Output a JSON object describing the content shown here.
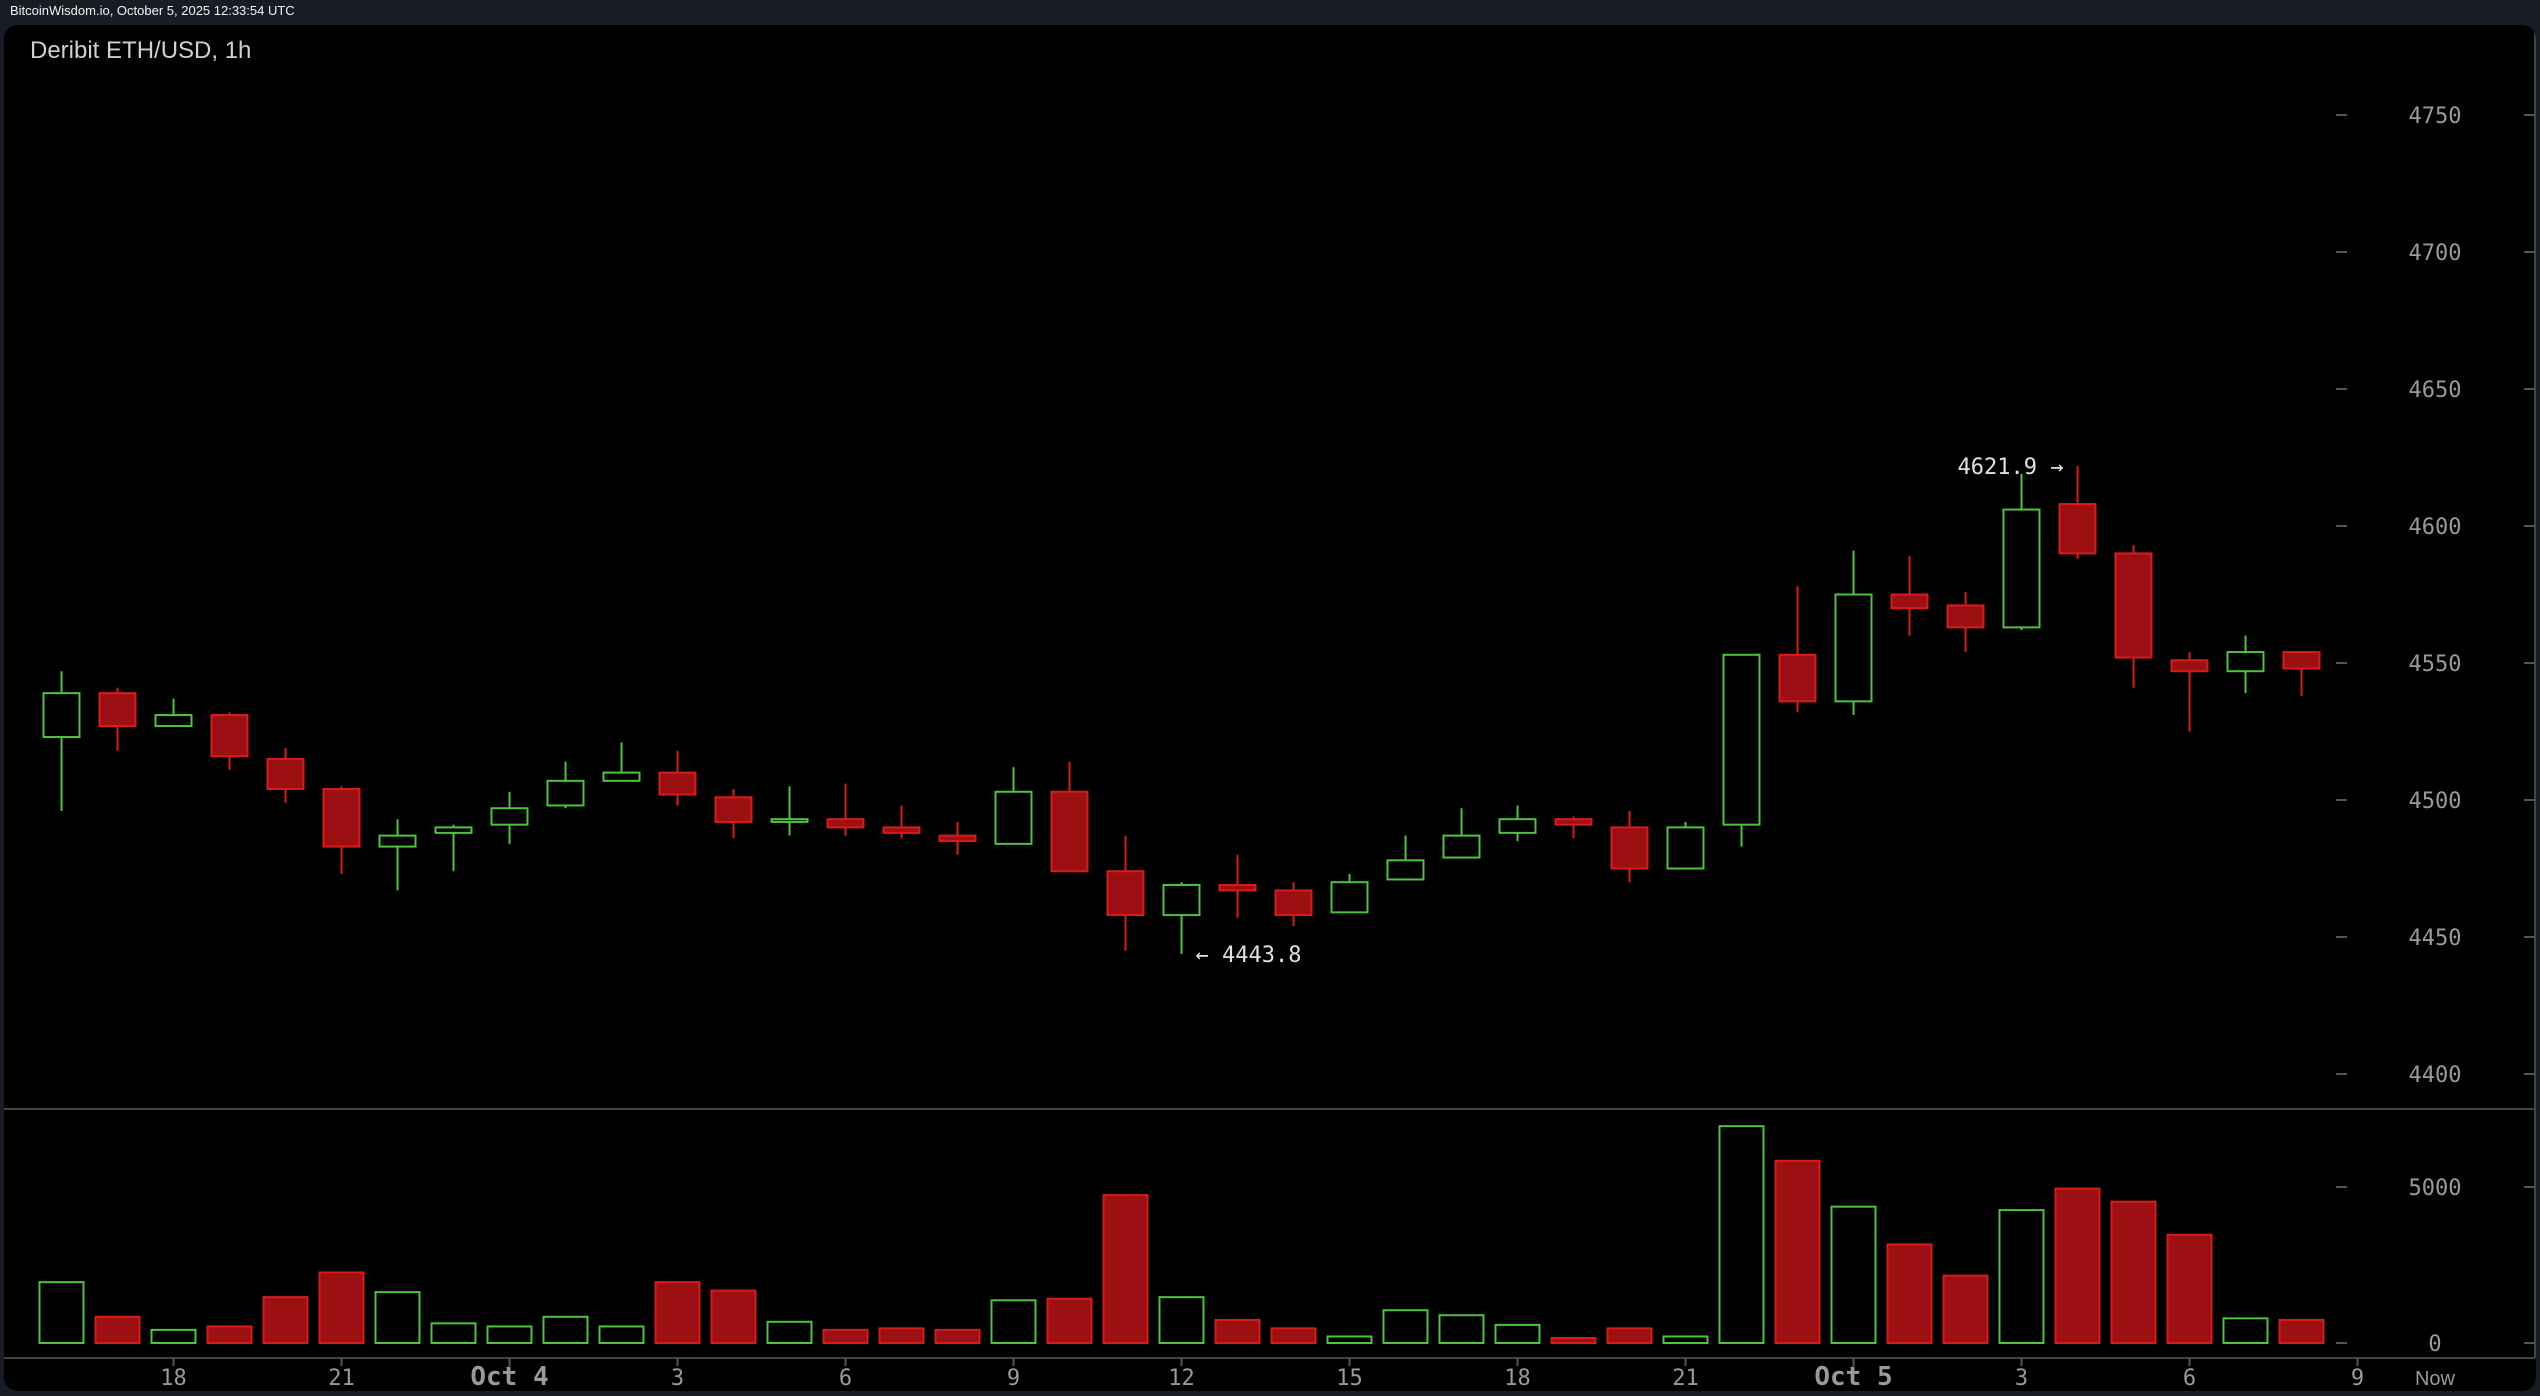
{
  "header": {
    "source_timestamp": "BitcoinWisdom.io, October 5, 2025 12:33:54 UTC"
  },
  "chart_data": [
    {
      "type": "candlestick",
      "title": "Deribit ETH/USD, 1h",
      "ylim": [
        4380,
        4780
      ],
      "y_ticks": [
        "4400",
        "4450",
        "4500",
        "4550",
        "4600",
        "4650",
        "4700",
        "4750"
      ],
      "x_tick_labels": [
        {
          "label": "18",
          "bar": 2
        },
        {
          "label": "21",
          "bar": 5
        },
        {
          "label": "Oct 4",
          "bar": 8,
          "bold": true
        },
        {
          "label": "3",
          "bar": 11
        },
        {
          "label": "6",
          "bar": 14
        },
        {
          "label": "9",
          "bar": 17
        },
        {
          "label": "12",
          "bar": 20
        },
        {
          "label": "15",
          "bar": 23
        },
        {
          "label": "18",
          "bar": 26
        },
        {
          "label": "21",
          "bar": 29
        },
        {
          "label": "Oct 5",
          "bar": 32,
          "bold": true
        },
        {
          "label": "3",
          "bar": 35
        },
        {
          "label": "6",
          "bar": 38
        },
        {
          "label": "9",
          "bar": 41
        }
      ],
      "now_label": "Now",
      "annotations": [
        {
          "text": "4621.9 →",
          "price": 4621.9,
          "bar": 36,
          "side": "left"
        },
        {
          "text": "← 4443.8",
          "price": 4443.8,
          "bar": 20,
          "side": "right"
        }
      ],
      "colors": {
        "up": "#4cc43c",
        "down_stroke": "#d81c1c",
        "down_fill": "#9c0f12",
        "axis_text": "#9a9a9a"
      },
      "ohlc": [
        [
          4523,
          4547,
          4496,
          4539
        ],
        [
          4539,
          4541,
          4518,
          4527
        ],
        [
          4527,
          4537,
          4527,
          4531
        ],
        [
          4531,
          4532,
          4511,
          4516
        ],
        [
          4515,
          4519,
          4499,
          4504
        ],
        [
          4504,
          4505,
          4473,
          4483
        ],
        [
          4483,
          4493,
          4467,
          4487
        ],
        [
          4488,
          4491,
          4474,
          4490
        ],
        [
          4491,
          4503,
          4484,
          4497
        ],
        [
          4498,
          4514,
          4497,
          4507
        ],
        [
          4507,
          4521,
          4507,
          4510
        ],
        [
          4510,
          4518,
          4498,
          4502
        ],
        [
          4501,
          4504,
          4486,
          4492
        ],
        [
          4492,
          4505,
          4487,
          4493
        ],
        [
          4493,
          4506,
          4487,
          4490
        ],
        [
          4490,
          4498,
          4486,
          4488
        ],
        [
          4487,
          4492,
          4480,
          4485
        ],
        [
          4484,
          4512,
          4484,
          4503
        ],
        [
          4503,
          4514,
          4474,
          4474
        ],
        [
          4474,
          4487,
          4445,
          4458
        ],
        [
          4458,
          4470,
          4443.8,
          4469
        ],
        [
          4469,
          4480,
          4457,
          4467
        ],
        [
          4467,
          4470,
          4454,
          4458
        ],
        [
          4459,
          4473,
          4459,
          4470
        ],
        [
          4471,
          4487,
          4471,
          4478
        ],
        [
          4479,
          4497,
          4479,
          4487
        ],
        [
          4488,
          4498,
          4485,
          4493
        ],
        [
          4493,
          4494,
          4486,
          4491
        ],
        [
          4490,
          4496,
          4470,
          4475
        ],
        [
          4475,
          4492,
          4475,
          4490
        ],
        [
          4491,
          4553,
          4483,
          4553
        ],
        [
          4553,
          4578,
          4532,
          4536
        ],
        [
          4536,
          4591,
          4531,
          4575
        ],
        [
          4575,
          4589,
          4560,
          4570
        ],
        [
          4571,
          4576,
          4554,
          4563
        ],
        [
          4563,
          4619,
          4562,
          4606
        ],
        [
          4608,
          4621.9,
          4588,
          4590
        ],
        [
          4590,
          4593,
          4541,
          4552
        ],
        [
          4551,
          4554,
          4525,
          4547
        ],
        [
          4547,
          4560,
          4539,
          4554
        ],
        [
          4554,
          4554,
          4538,
          4548
        ]
      ]
    },
    {
      "type": "bar",
      "title": "",
      "ylim": [
        0,
        7200
      ],
      "y_ticks": [
        "0",
        "5000"
      ],
      "values": [
        1950,
        840,
        420,
        530,
        1470,
        2260,
        1630,
        630,
        530,
        840,
        530,
        1950,
        1680,
        680,
        420,
        470,
        420,
        1370,
        1420,
        4740,
        1470,
        740,
        470,
        210,
        1050,
        890,
        580,
        160,
        470,
        210,
        6950,
        5840,
        4370,
        3160,
        2160,
        4260,
        4950,
        4530,
        3470,
        790,
        740
      ]
    }
  ]
}
